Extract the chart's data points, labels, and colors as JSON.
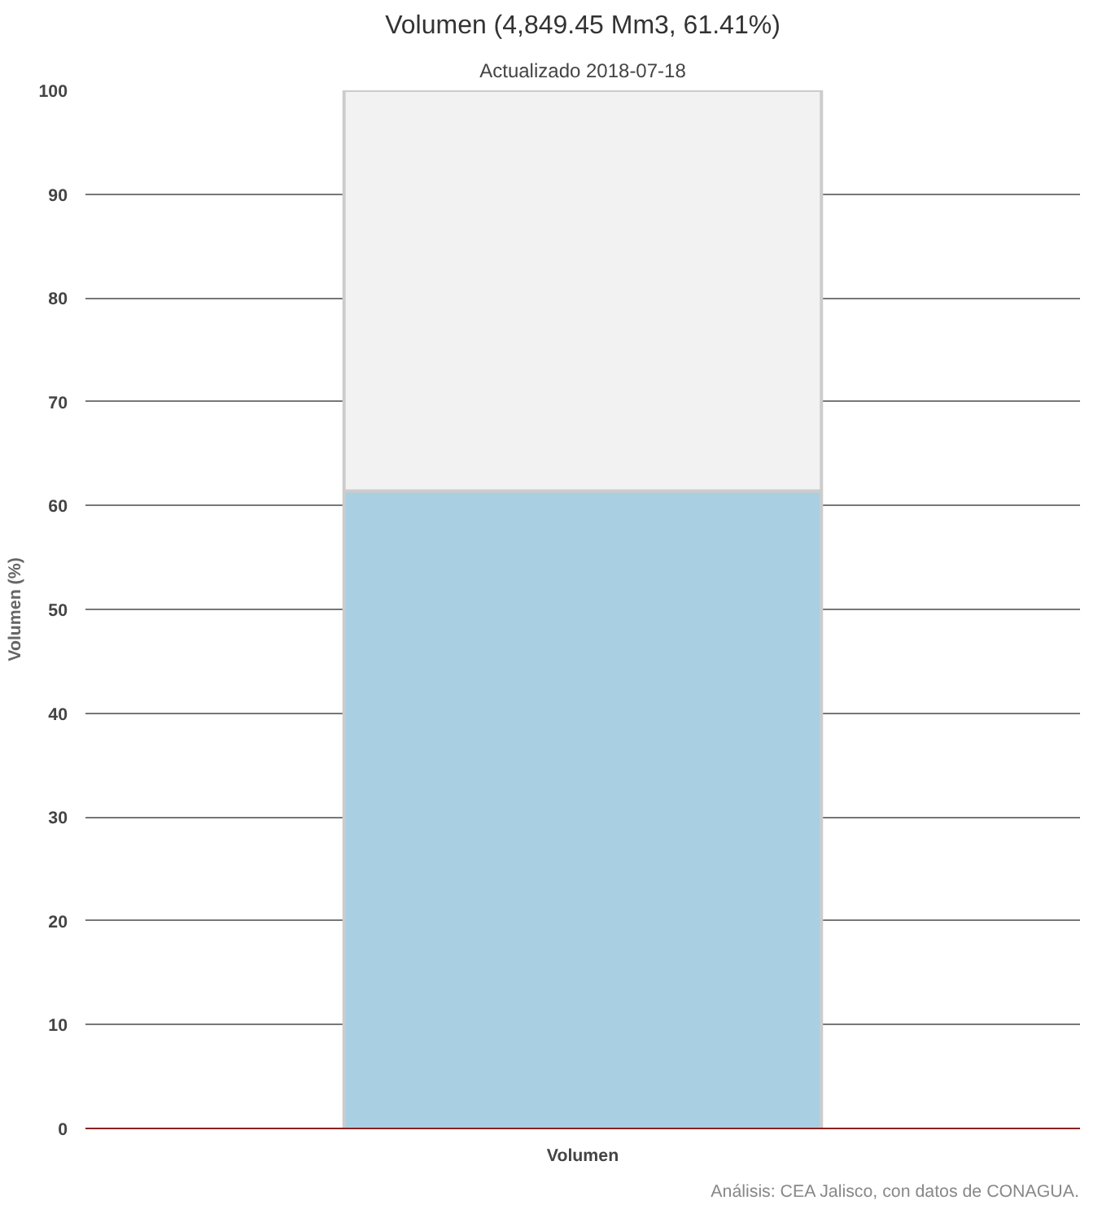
{
  "chart_data": {
    "type": "bar",
    "title": "Volumen (4,849.45 Mm3, 61.41%)",
    "subtitle": "Actualizado 2018-07-18",
    "ylabel": "Volumen (%)",
    "categories": [
      "Volumen"
    ],
    "stacked": true,
    "series": [
      {
        "color": "#a9cfe3",
        "values": [
          61.41
        ]
      },
      {
        "color": "#f2f2f2",
        "values": [
          38.59
        ]
      }
    ],
    "ylim": [
      0,
      100
    ],
    "yticks": [
      0,
      10,
      20,
      30,
      40,
      50,
      60,
      70,
      80,
      90,
      100
    ],
    "grid": "y",
    "annotations": [
      "Análisis: CEA Jalisco, con datos de CONAGUA."
    ]
  }
}
